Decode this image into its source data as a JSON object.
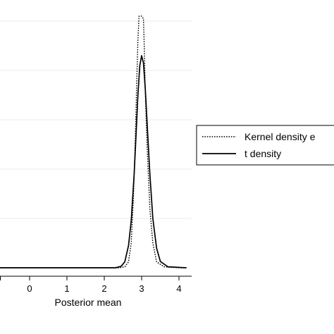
{
  "chart_data": {
    "type": "line",
    "xlabel": "Posterior mean",
    "ylabel": "",
    "title": "",
    "xlim": [
      -0.85,
      4.3
    ],
    "ylim": [
      0,
      5.2
    ],
    "x_ticks": [
      0,
      1,
      2,
      3,
      4
    ],
    "x_tick_labels": [
      "0",
      "1",
      "2",
      "3",
      "4"
    ],
    "grid": "horizontal",
    "grid_y": [
      1,
      2,
      3,
      4,
      5
    ],
    "legend_position": "right",
    "series": [
      {
        "name": "Kernel density e",
        "style": "dotted",
        "color": "#000000",
        "x": [
          -0.85,
          2.4,
          2.55,
          2.65,
          2.72,
          2.78,
          2.83,
          2.87,
          2.9,
          2.93,
          3.0,
          3.05,
          3.07,
          3.1,
          3.15,
          3.22,
          3.3,
          3.4,
          3.6,
          4.0,
          4.2
        ],
        "y": [
          0,
          0,
          0.02,
          0.12,
          0.5,
          1.4,
          2.6,
          3.8,
          4.6,
          5.1,
          5.1,
          5.05,
          4.5,
          3.5,
          2.4,
          1.2,
          0.5,
          0.12,
          0.02,
          0,
          0
        ]
      },
      {
        "name": "t density",
        "style": "solid",
        "color": "#000000",
        "x": [
          -0.85,
          2.3,
          2.45,
          2.55,
          2.65,
          2.72,
          2.8,
          2.85,
          2.9,
          2.95,
          3.0,
          3.05,
          3.1,
          3.15,
          3.22,
          3.3,
          3.4,
          3.5,
          3.7,
          4.2
        ],
        "y": [
          0,
          0,
          0.03,
          0.12,
          0.45,
          0.95,
          1.9,
          2.7,
          3.5,
          4.1,
          4.3,
          4.15,
          3.6,
          2.9,
          1.9,
          1.0,
          0.4,
          0.13,
          0.02,
          0
        ]
      }
    ]
  }
}
